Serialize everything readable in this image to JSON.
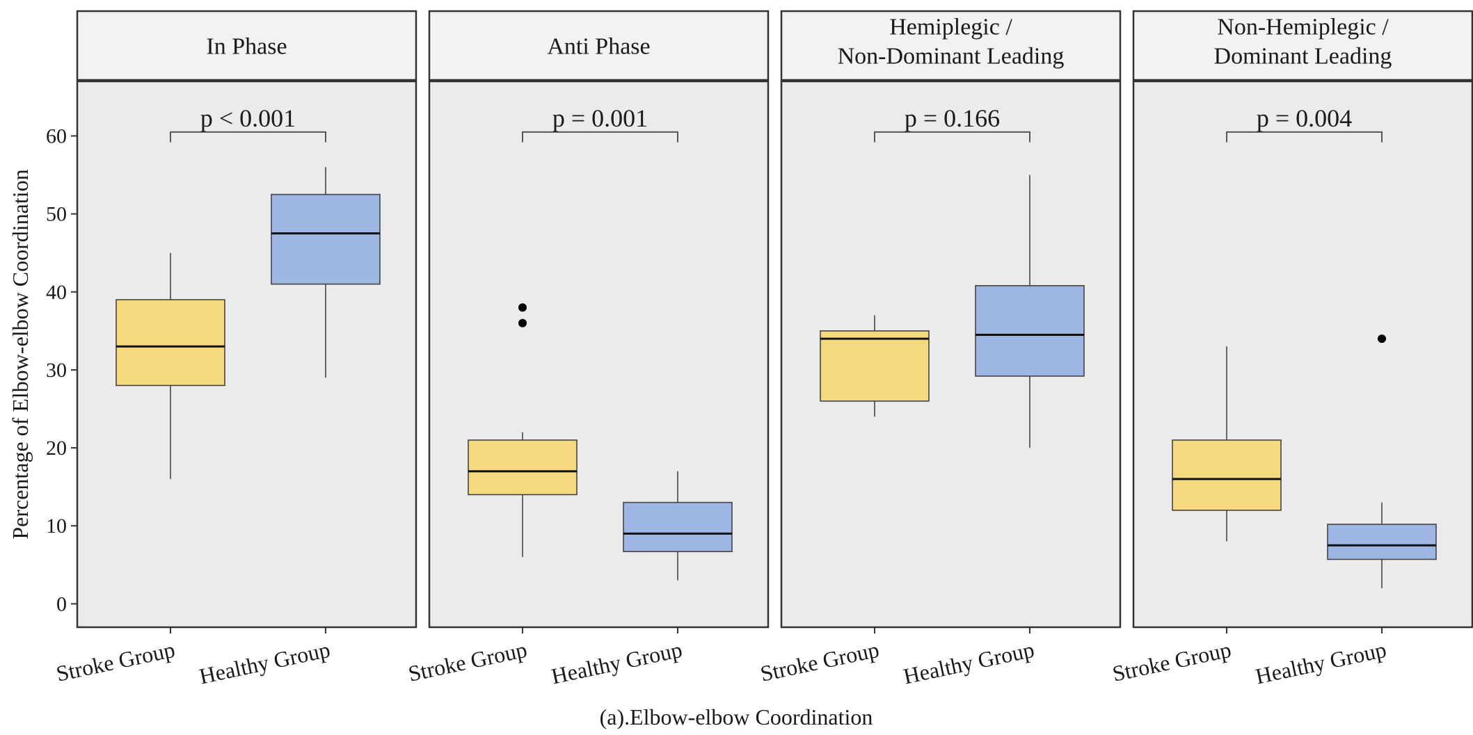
{
  "colors": {
    "stroke_group": "#f5d97e",
    "healthy_group": "#9db6e4",
    "panel_background": "#ebebeb",
    "strip_background": "#f2f2f2",
    "border": "#333333"
  },
  "chart_data": {
    "type": "boxplot",
    "caption": "(a).Elbow-elbow Coordination",
    "ylabel": "Percentage of Elbow-elbow Coordination",
    "ylim": [
      -3,
      67
    ],
    "yticks": [
      0,
      10,
      20,
      30,
      40,
      50,
      60
    ],
    "categories": [
      "Stroke Group",
      "Healthy Group"
    ],
    "panels": [
      {
        "title": [
          "In Phase"
        ],
        "p_value": "p < 0.001",
        "boxes": [
          {
            "group": "Stroke Group",
            "whisker_low": 16,
            "q1": 28,
            "median": 33,
            "q3": 39,
            "whisker_high": 45,
            "outliers": []
          },
          {
            "group": "Healthy Group",
            "whisker_low": 29,
            "q1": 41,
            "median": 47.5,
            "q3": 52.5,
            "whisker_high": 56,
            "outliers": []
          }
        ]
      },
      {
        "title": [
          "Anti Phase"
        ],
        "p_value": "p = 0.001",
        "boxes": [
          {
            "group": "Stroke Group",
            "whisker_low": 6,
            "q1": 14,
            "median": 17,
            "q3": 21,
            "whisker_high": 22,
            "outliers": [
              36,
              38
            ]
          },
          {
            "group": "Healthy Group",
            "whisker_low": 3,
            "q1": 6.7,
            "median": 9,
            "q3": 13,
            "whisker_high": 17,
            "outliers": []
          }
        ]
      },
      {
        "title": [
          "Hemiplegic /",
          "Non-Dominant Leading"
        ],
        "p_value": "p = 0.166",
        "boxes": [
          {
            "group": "Stroke Group",
            "whisker_low": 24,
            "q1": 26,
            "median": 34,
            "q3": 35,
            "whisker_high": 37,
            "outliers": []
          },
          {
            "group": "Healthy Group",
            "whisker_low": 20,
            "q1": 29.2,
            "median": 34.5,
            "q3": 40.8,
            "whisker_high": 55,
            "outliers": []
          }
        ]
      },
      {
        "title": [
          "Non-Hemiplegic /",
          "Dominant Leading"
        ],
        "p_value": "p = 0.004",
        "boxes": [
          {
            "group": "Stroke Group",
            "whisker_low": 8,
            "q1": 12,
            "median": 16,
            "q3": 21,
            "whisker_high": 33,
            "outliers": []
          },
          {
            "group": "Healthy Group",
            "whisker_low": 2,
            "q1": 5.7,
            "median": 7.5,
            "q3": 10.2,
            "whisker_high": 13,
            "outliers": [
              34
            ]
          }
        ]
      }
    ]
  }
}
